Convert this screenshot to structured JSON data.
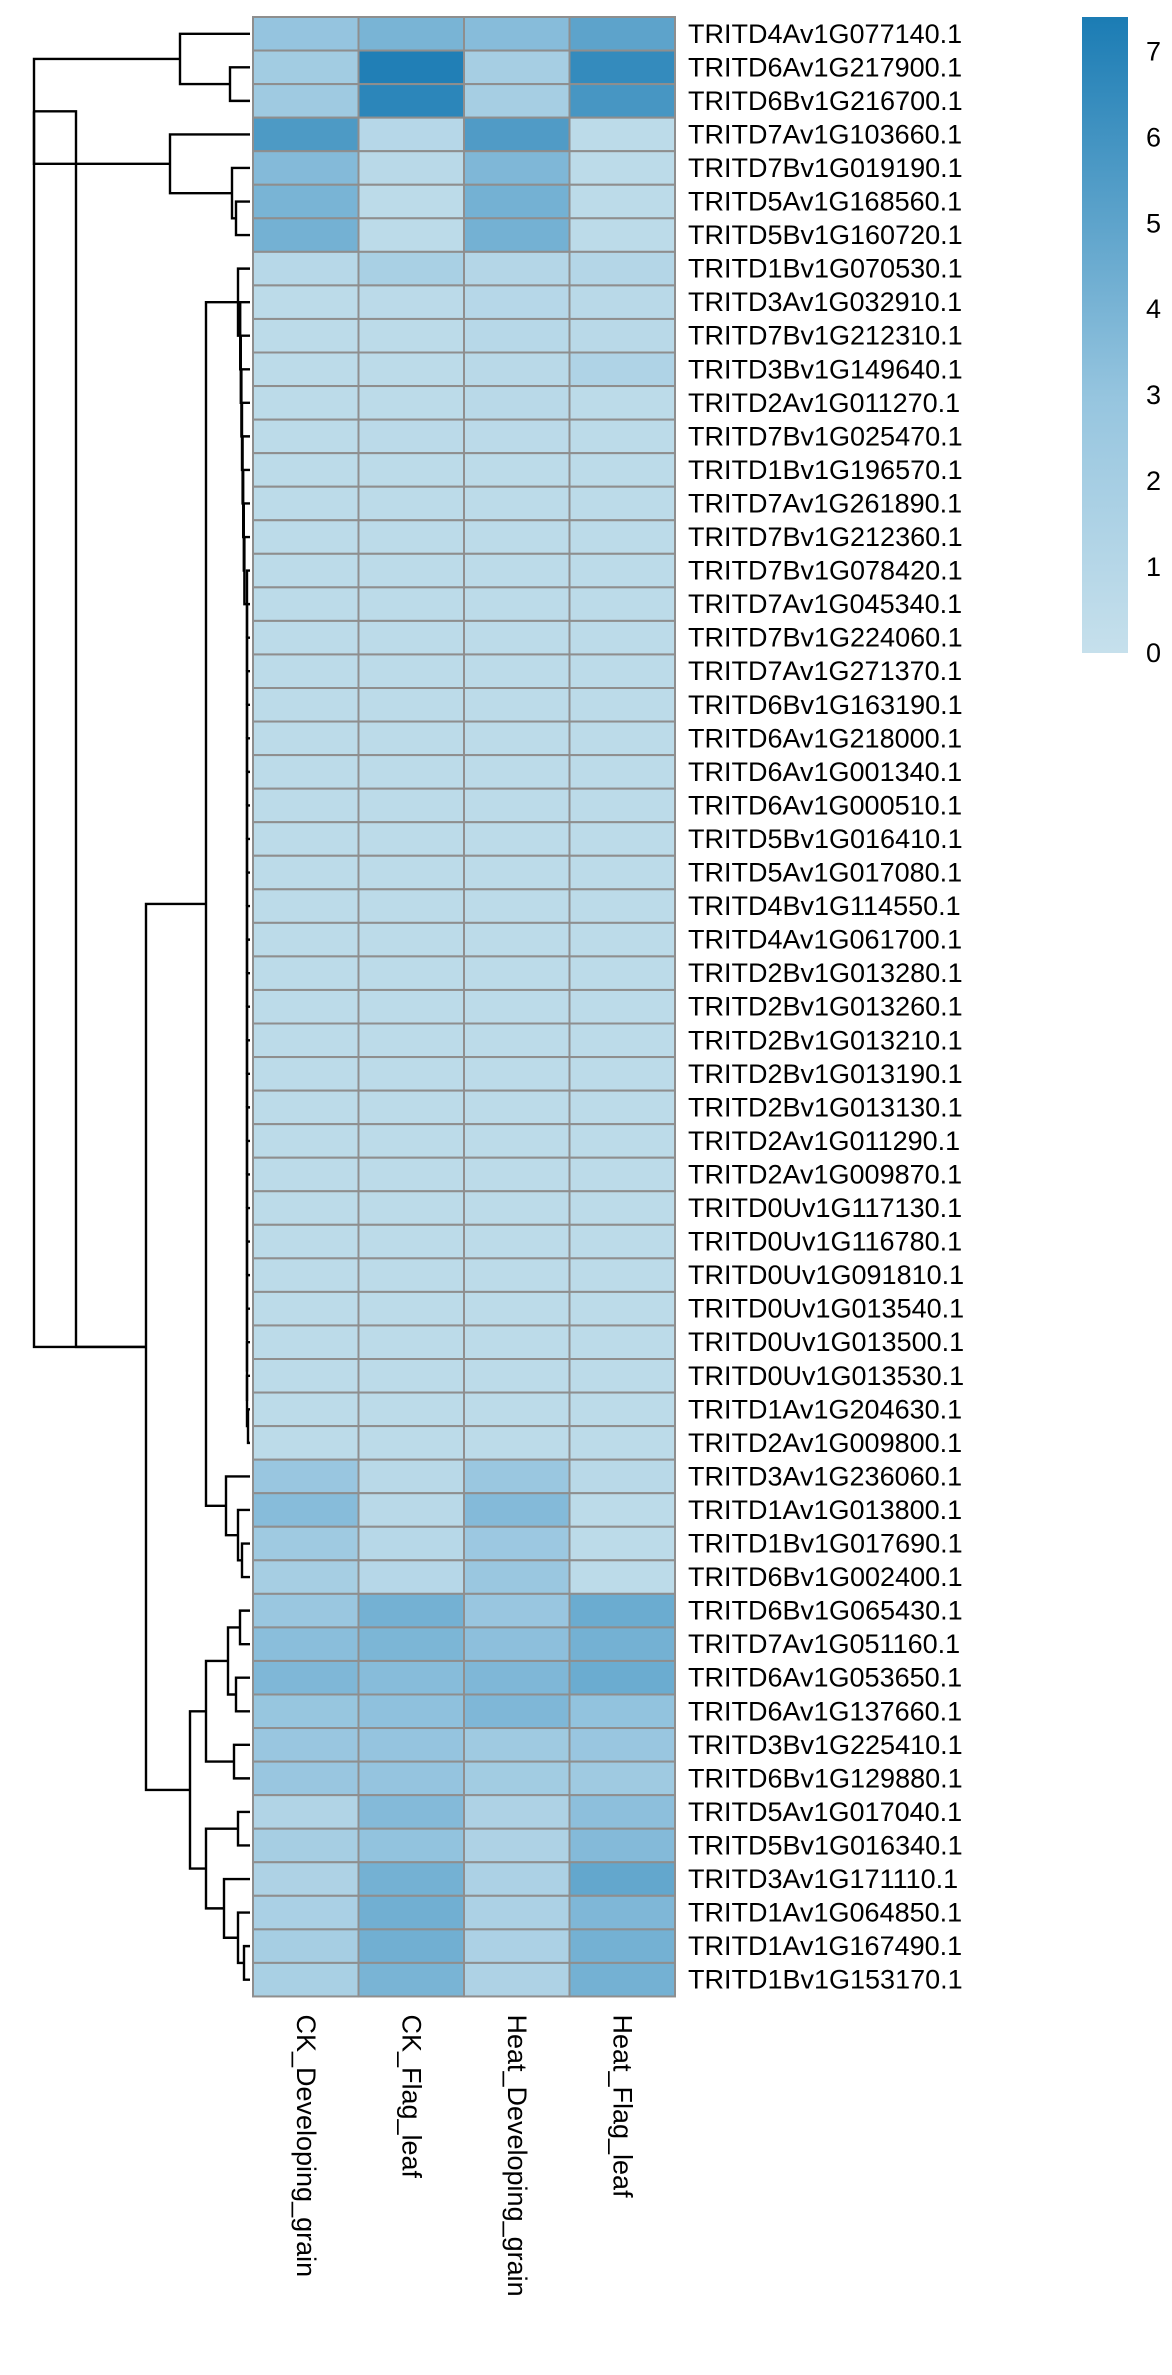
{
  "chart_data": {
    "type": "heatmap",
    "title": "",
    "columns": [
      "CK_Developing_grain",
      "CK_Flag_leaf",
      "Heat_Developing_grain",
      "Heat_Flag_leaf"
    ],
    "rows": [
      "TRITD4Av1G077140.1",
      "TRITD6Av1G217900.1",
      "TRITD6Bv1G216700.1",
      "TRITD7Av1G103660.1",
      "TRITD7Bv1G019190.1",
      "TRITD5Av1G168560.1",
      "TRITD5Bv1G160720.1",
      "TRITD1Bv1G070530.1",
      "TRITD3Av1G032910.1",
      "TRITD7Bv1G212310.1",
      "TRITD3Bv1G149640.1",
      "TRITD2Av1G011270.1",
      "TRITD7Bv1G025470.1",
      "TRITD1Bv1G196570.1",
      "TRITD7Av1G261890.1",
      "TRITD7Bv1G212360.1",
      "TRITD7Bv1G078420.1",
      "TRITD7Av1G045340.1",
      "TRITD7Bv1G224060.1",
      "TRITD7Av1G271370.1",
      "TRITD6Bv1G163190.1",
      "TRITD6Av1G218000.1",
      "TRITD6Av1G001340.1",
      "TRITD6Av1G000510.1",
      "TRITD5Bv1G016410.1",
      "TRITD5Av1G017080.1",
      "TRITD4Bv1G114550.1",
      "TRITD4Av1G061700.1",
      "TRITD2Bv1G013280.1",
      "TRITD2Bv1G013260.1",
      "TRITD2Bv1G013210.1",
      "TRITD2Bv1G013190.1",
      "TRITD2Bv1G013130.1",
      "TRITD2Av1G011290.1",
      "TRITD2Av1G009870.1",
      "TRITD0Uv1G117130.1",
      "TRITD0Uv1G116780.1",
      "TRITD0Uv1G091810.1",
      "TRITD0Uv1G013540.1",
      "TRITD0Uv1G013500.1",
      "TRITD0Uv1G013530.1",
      "TRITD1Av1G204630.1",
      "TRITD2Av1G009800.1",
      "TRITD3Av1G236060.1",
      "TRITD1Av1G013800.1",
      "TRITD1Bv1G017690.1",
      "TRITD6Bv1G002400.1",
      "TRITD6Bv1G065430.1",
      "TRITD7Av1G051160.1",
      "TRITD6Av1G053650.1",
      "TRITD6Av1G137660.1",
      "TRITD3Bv1G225410.1",
      "TRITD6Bv1G129880.1",
      "TRITD5Av1G017040.1",
      "TRITD5Bv1G016340.1",
      "TRITD3Av1G171110.1",
      "TRITD1Av1G064850.1",
      "TRITD1Av1G167490.1",
      "TRITD1Bv1G153170.1"
    ],
    "values": [
      [
        3.0,
        4.0,
        3.5,
        5.0
      ],
      [
        2.2,
        7.2,
        2.0,
        6.5
      ],
      [
        2.4,
        6.8,
        2.0,
        5.8
      ],
      [
        5.6,
        1.0,
        5.5,
        0.6
      ],
      [
        3.6,
        0.8,
        3.8,
        0.6
      ],
      [
        4.0,
        0.6,
        4.2,
        0.6
      ],
      [
        4.2,
        0.6,
        4.2,
        0.6
      ],
      [
        0.9,
        1.8,
        1.1,
        1.1
      ],
      [
        0.6,
        0.7,
        1.0,
        0.8
      ],
      [
        0.6,
        0.6,
        0.9,
        0.8
      ],
      [
        0.6,
        0.6,
        0.8,
        1.4
      ],
      [
        0.6,
        0.6,
        0.8,
        0.6
      ],
      [
        0.6,
        0.7,
        0.7,
        0.6
      ],
      [
        0.6,
        0.6,
        0.6,
        0.6
      ],
      [
        0.6,
        0.6,
        0.6,
        0.6
      ],
      [
        0.6,
        0.6,
        0.6,
        0.6
      ],
      [
        0.6,
        0.6,
        0.6,
        0.6
      ],
      [
        0.6,
        0.6,
        0.6,
        0.6
      ],
      [
        0.6,
        0.6,
        0.6,
        0.6
      ],
      [
        0.6,
        0.6,
        0.6,
        0.6
      ],
      [
        0.6,
        0.6,
        0.6,
        0.6
      ],
      [
        0.6,
        0.6,
        0.6,
        0.6
      ],
      [
        0.6,
        0.6,
        0.6,
        0.6
      ],
      [
        0.6,
        0.6,
        0.6,
        0.6
      ],
      [
        0.6,
        0.6,
        0.6,
        0.6
      ],
      [
        0.6,
        0.6,
        0.6,
        0.6
      ],
      [
        0.6,
        0.6,
        0.6,
        0.6
      ],
      [
        0.6,
        0.6,
        0.6,
        0.6
      ],
      [
        0.6,
        0.6,
        0.6,
        0.6
      ],
      [
        0.6,
        0.6,
        0.6,
        0.6
      ],
      [
        0.6,
        0.6,
        0.6,
        0.6
      ],
      [
        0.6,
        0.6,
        0.6,
        0.6
      ],
      [
        0.6,
        0.6,
        0.6,
        0.6
      ],
      [
        0.6,
        0.6,
        0.6,
        0.6
      ],
      [
        0.6,
        0.6,
        0.6,
        0.6
      ],
      [
        0.6,
        0.6,
        0.6,
        0.6
      ],
      [
        0.6,
        0.6,
        0.6,
        0.6
      ],
      [
        0.6,
        0.6,
        0.6,
        0.6
      ],
      [
        0.6,
        0.6,
        0.6,
        0.6
      ],
      [
        0.6,
        0.6,
        0.6,
        0.6
      ],
      [
        0.6,
        0.6,
        0.6,
        0.6
      ],
      [
        0.6,
        0.6,
        0.6,
        0.6
      ],
      [
        0.6,
        0.6,
        0.6,
        0.6
      ],
      [
        2.8,
        0.8,
        2.7,
        0.8
      ],
      [
        3.5,
        0.8,
        3.6,
        0.6
      ],
      [
        2.4,
        0.9,
        2.6,
        0.6
      ],
      [
        2.0,
        1.0,
        2.7,
        0.6
      ],
      [
        2.7,
        4.2,
        2.8,
        4.5
      ],
      [
        3.4,
        3.9,
        3.3,
        4.2
      ],
      [
        3.8,
        3.5,
        3.8,
        4.5
      ],
      [
        2.9,
        3.2,
        3.8,
        3.1
      ],
      [
        2.8,
        3.0,
        2.4,
        2.8
      ],
      [
        2.8,
        3.0,
        2.2,
        2.4
      ],
      [
        1.3,
        3.6,
        1.5,
        3.3
      ],
      [
        2.0,
        3.1,
        1.5,
        3.6
      ],
      [
        1.5,
        4.2,
        1.6,
        4.8
      ],
      [
        1.7,
        4.3,
        1.6,
        3.8
      ],
      [
        2.0,
        4.3,
        1.6,
        4.2
      ],
      [
        1.8,
        4.0,
        1.5,
        4.2
      ]
    ],
    "legend": {
      "min": 0,
      "max": 7.4,
      "ticks": [
        "0",
        "1",
        "2",
        "3",
        "4",
        "5",
        "6",
        "7"
      ],
      "low_color": "#c6e0ec",
      "mid_color": "#96c5df",
      "high_color": "#1b7cb4"
    },
    "row_clustering": true
  }
}
